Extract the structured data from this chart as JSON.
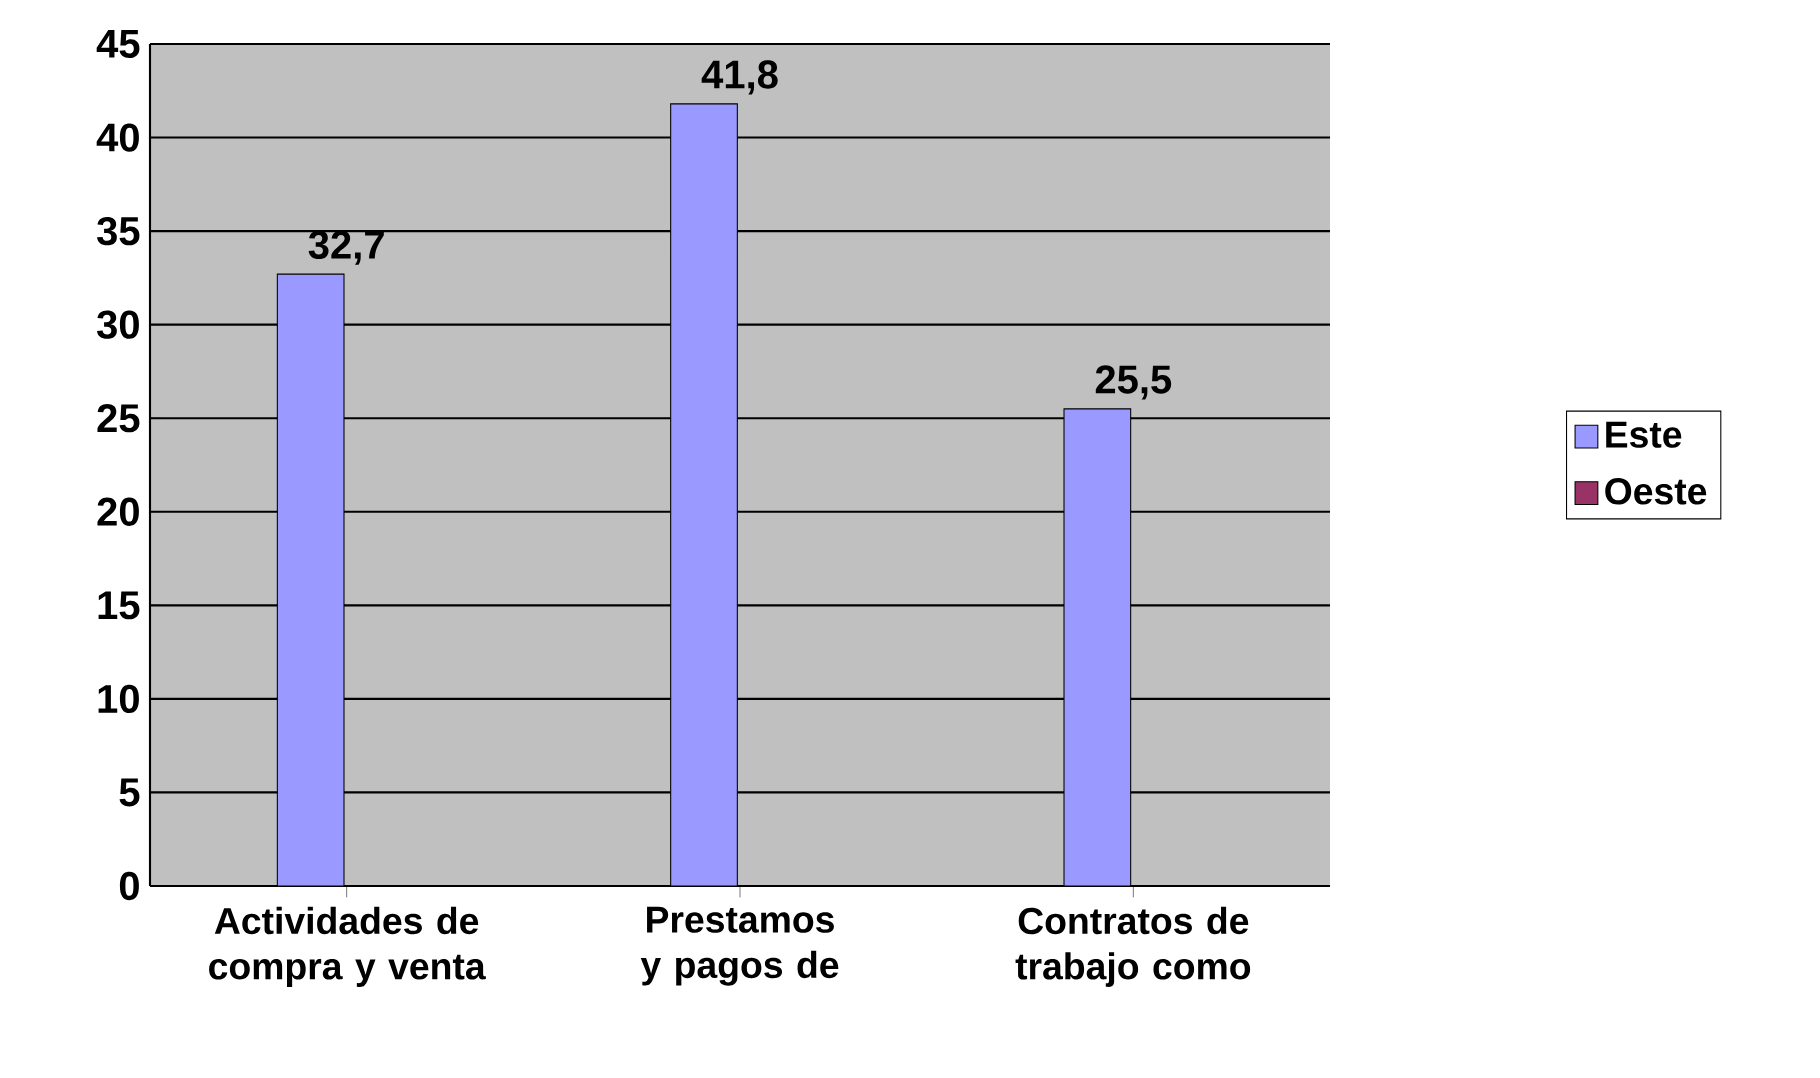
{
  "chart_data": {
    "type": "bar",
    "categories": [
      "Actividades de compra y venta",
      "Prestamos y pagos de",
      "Contratos de trabajo como"
    ],
    "series": [
      {
        "name": "Este",
        "color": "#9999ff",
        "values": [
          32.7,
          41.8,
          25.5
        ],
        "value_labels": [
          "32,7",
          "41,8",
          "25,5"
        ]
      },
      {
        "name": "Oeste",
        "color": "#993366",
        "values": [
          null,
          null,
          0
        ]
      }
    ],
    "ylim": [
      0,
      45
    ],
    "yticks": [
      0,
      5,
      10,
      15,
      20,
      25,
      30,
      35,
      40,
      45
    ],
    "grid": "y",
    "legend": "right"
  }
}
